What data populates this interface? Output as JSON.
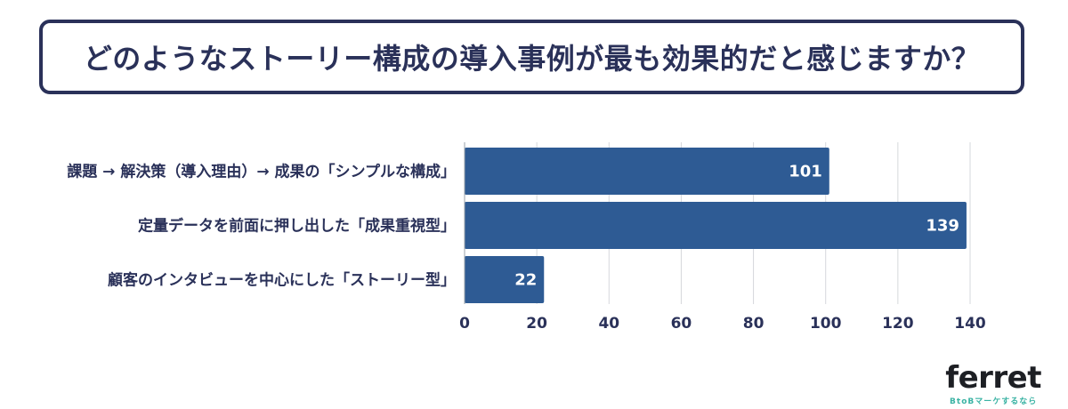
{
  "title": "どのようなストーリー構成の導入事例が最も効果的だと感じますか？",
  "chart_data": {
    "type": "bar",
    "orientation": "horizontal",
    "categories": [
      "課題 → 解決策（導入理由）→ 成果の「シンプルな構成」",
      "定量データを前面に押し出した「成果重視型」",
      "顧客のインタビューを中心にした「ストーリー型」"
    ],
    "values": [
      101,
      139,
      22
    ],
    "xlim": [
      0,
      140
    ],
    "xticks": [
      0,
      20,
      40,
      60,
      80,
      100,
      120,
      140
    ],
    "grid": true,
    "bar_color": "#2e5b94"
  },
  "logo": {
    "word": "ferret",
    "tagline": "BtoBマーケするなら"
  }
}
